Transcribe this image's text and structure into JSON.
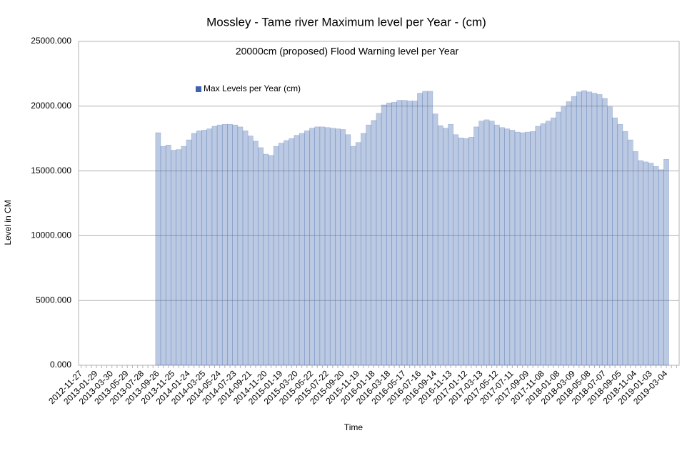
{
  "chart_data": {
    "type": "bar",
    "title": "Mossley - Tame river Maximum level per Year - (cm)",
    "annotation": "20000cm  (proposed) Flood Warning level per Year",
    "x_label": "Time",
    "y_label": "Level in CM",
    "categories": [
      "2012-11-27",
      null,
      null,
      "2013-01-29",
      null,
      null,
      "2013-03-30",
      null,
      null,
      "2013-05-29",
      null,
      null,
      "2013-07-28",
      null,
      null,
      "2013-09-26",
      null,
      null,
      "2013-11-25",
      null,
      null,
      "2014-01-24",
      null,
      null,
      "2014-03-25",
      null,
      null,
      "2014-05-24",
      null,
      null,
      "2014-07-23",
      null,
      null,
      "2014-09-21",
      null,
      null,
      "2014-11-20",
      null,
      null,
      "2015-01-19",
      null,
      null,
      "2015-03-20",
      null,
      null,
      "2015-05-22",
      null,
      null,
      "2015-07-22",
      null,
      null,
      "2015-09-20",
      null,
      null,
      "2015-11-19",
      null,
      null,
      "2016-01-18",
      null,
      null,
      "2016-03-18",
      null,
      null,
      "2016-05-17",
      null,
      null,
      "2016-07-16",
      null,
      null,
      "2016-09-14",
      null,
      null,
      "2016-11-13",
      null,
      null,
      "2017-01-12",
      null,
      null,
      "2017-03-13",
      null,
      null,
      "2017-05-12",
      null,
      null,
      "2017-07-11",
      null,
      null,
      "2017-09-09",
      null,
      null,
      "2017-11-08",
      null,
      null,
      "2018-01-08",
      null,
      null,
      "2018-03-09",
      null,
      null,
      "2018-05-08",
      null,
      null,
      "2018-07-07",
      null,
      null,
      "2018-09-05",
      null,
      null,
      "2018-11-04",
      null,
      null,
      "2019-01-03",
      null,
      null,
      "2019-03-04",
      null,
      null
    ],
    "series": [
      {
        "name": "Max Levels per Year (cm)",
        "color": "#3c63ac",
        "values": [
          null,
          null,
          null,
          null,
          null,
          null,
          null,
          null,
          null,
          null,
          null,
          null,
          null,
          null,
          null,
          17950,
          16900,
          17000,
          16600,
          16650,
          16900,
          17400,
          17900,
          18100,
          18150,
          18250,
          18450,
          18550,
          18600,
          18600,
          18550,
          18400,
          18100,
          17700,
          17300,
          16800,
          16300,
          16200,
          16900,
          17150,
          17350,
          17500,
          17750,
          17900,
          18100,
          18300,
          18400,
          18400,
          18350,
          18300,
          18250,
          18200,
          17800,
          16900,
          17200,
          17900,
          18550,
          18900,
          19450,
          20100,
          20250,
          20300,
          20450,
          20450,
          20400,
          20400,
          21000,
          21150,
          21150,
          19400,
          18500,
          18300,
          18600,
          17800,
          17550,
          17500,
          17600,
          18400,
          18850,
          18950,
          18850,
          18550,
          18350,
          18250,
          18150,
          18000,
          17950,
          18000,
          18050,
          18450,
          18650,
          18850,
          19100,
          19550,
          19950,
          20350,
          20750,
          21100,
          21200,
          21100,
          21000,
          20900,
          20600,
          19950,
          19100,
          18600,
          18050,
          17400,
          16500,
          15800,
          15700,
          15600,
          15350,
          15100,
          15900,
          null,
          null
        ]
      }
    ],
    "ylim": [
      0,
      25000
    ],
    "yticks": [
      {
        "value": 0,
        "label": "0.000"
      },
      {
        "value": 5000,
        "label": "5000.000"
      },
      {
        "value": 10000,
        "label": "10000.000"
      },
      {
        "value": 15000,
        "label": "15000.000"
      },
      {
        "value": 20000,
        "label": "20000.000"
      },
      {
        "value": 25000,
        "label": "25000.000"
      }
    ],
    "grid": true
  }
}
